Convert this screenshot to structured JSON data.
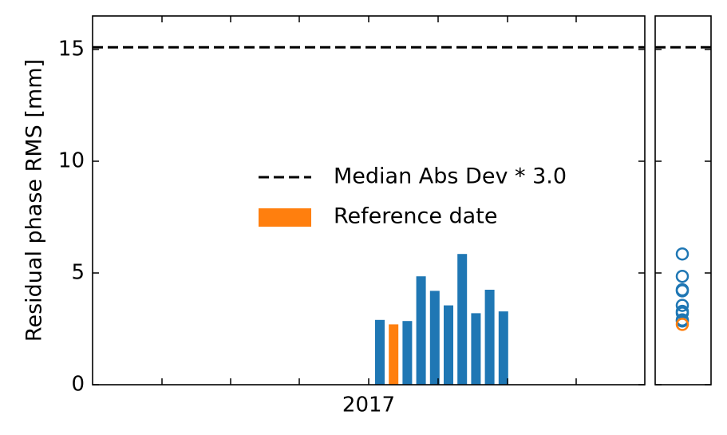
{
  "chart_data": [
    {
      "type": "bar",
      "ylabel": "Residual phase RMS [mm]",
      "xlabel": "",
      "ylim": [
        0,
        16.5
      ],
      "yticks": [
        0,
        5,
        10,
        15
      ],
      "xtick_labels": [
        "2017"
      ],
      "threshold": 15.1,
      "series": [
        {
          "name": "",
          "color": "#1f77b4",
          "values": [
            2.9,
            2.85,
            4.85,
            4.2,
            3.55,
            5.85,
            3.2,
            4.25,
            3.28
          ]
        },
        {
          "name": "Reference date",
          "color": "#ff7f0e",
          "values": [
            2.7
          ]
        }
      ],
      "legend": {
        "position": "center",
        "entries": [
          {
            "label": "Median Abs Dev * 3.0",
            "style": "dashed-line",
            "color": "#000000"
          },
          {
            "label": "Reference date",
            "style": "patch",
            "color": "#ff7f0e"
          }
        ]
      },
      "grid": false
    },
    {
      "type": "scatter",
      "ylim": [
        0,
        16.5
      ],
      "threshold": 15.1,
      "series": [
        {
          "name": "",
          "color": "#1f77b4",
          "marker": "open-circle",
          "values": [
            2.9,
            2.85,
            4.85,
            4.2,
            3.55,
            5.85,
            3.2,
            4.25,
            3.28
          ]
        },
        {
          "name": "Reference date",
          "color": "#ff7f0e",
          "marker": "open-circle",
          "values": [
            2.7
          ]
        }
      ]
    }
  ]
}
